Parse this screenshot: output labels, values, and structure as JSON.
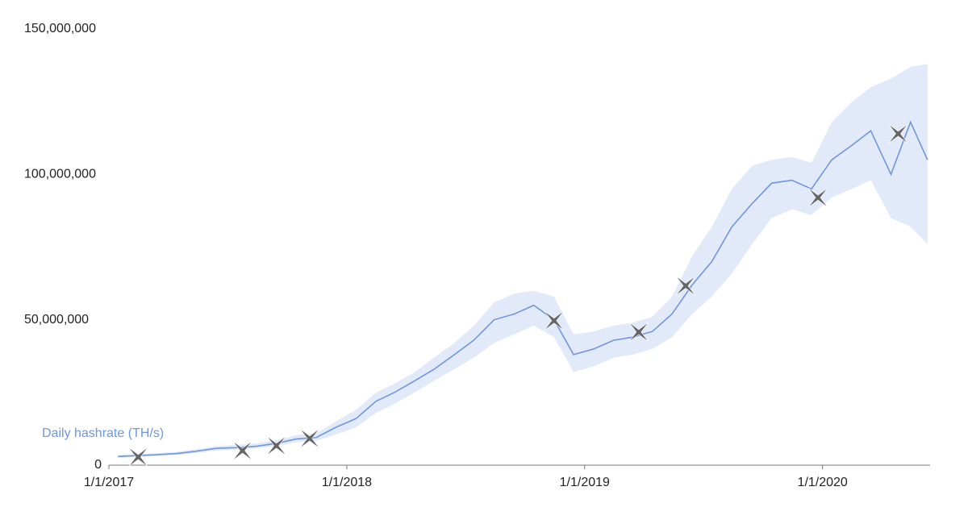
{
  "chart_data": {
    "type": "line",
    "x": [
      "2017-01-15",
      "2017-02-15",
      "2017-03-15",
      "2017-04-15",
      "2017-05-15",
      "2017-06-15",
      "2017-07-15",
      "2017-08-15",
      "2017-09-15",
      "2017-10-15",
      "2017-11-15",
      "2017-12-15",
      "2018-01-15",
      "2018-02-15",
      "2018-03-15",
      "2018-04-15",
      "2018-05-15",
      "2018-06-15",
      "2018-07-15",
      "2018-08-15",
      "2018-09-15",
      "2018-10-15",
      "2018-11-15",
      "2018-12-15",
      "2019-01-15",
      "2019-02-15",
      "2019-03-15",
      "2019-04-15",
      "2019-05-15",
      "2019-06-15",
      "2019-07-15",
      "2019-08-15",
      "2019-09-15",
      "2019-10-15",
      "2019-11-15",
      "2019-12-15",
      "2020-01-15",
      "2020-02-15",
      "2020-03-15",
      "2020-04-15",
      "2020-05-15",
      "2020-06-10"
    ],
    "series": [
      {
        "name": "Daily hashrate (TH/s)",
        "color": "#6f96e0",
        "values": [
          3000000,
          3300000,
          3600000,
          4000000,
          4800000,
          5800000,
          6000000,
          6500000,
          7500000,
          9000000,
          9500000,
          13000000,
          16000000,
          22000000,
          25000000,
          29000000,
          33000000,
          38000000,
          43000000,
          50000000,
          52000000,
          55000000,
          50000000,
          38000000,
          40000000,
          43000000,
          44000000,
          46000000,
          52000000,
          62000000,
          70000000,
          82000000,
          90000000,
          97000000,
          98000000,
          95000000,
          105000000,
          110000000,
          115000000,
          100000000,
          118000000,
          105000000
        ]
      }
    ],
    "band": {
      "color": "#e2eafa",
      "upper": [
        3500000,
        3800000,
        4200000,
        4600000,
        5500000,
        6600000,
        7000000,
        7500000,
        8600000,
        10300000,
        11000000,
        15000000,
        19000000,
        25000000,
        28000000,
        32000000,
        37000000,
        42000000,
        48000000,
        56000000,
        59000000,
        60000000,
        58000000,
        45000000,
        46000000,
        48000000,
        49000000,
        51000000,
        58000000,
        72000000,
        82000000,
        95000000,
        103000000,
        105000000,
        106000000,
        104000000,
        118000000,
        125000000,
        130000000,
        133000000,
        137000000,
        138000000
      ],
      "lower": [
        2600000,
        2900000,
        3200000,
        3500000,
        4200000,
        5000000,
        5300000,
        5800000,
        6600000,
        7900000,
        8400000,
        10500000,
        13000000,
        18000000,
        21000000,
        25000000,
        29000000,
        33000000,
        37000000,
        42000000,
        45000000,
        48000000,
        44000000,
        32000000,
        34000000,
        37000000,
        38000000,
        40000000,
        44000000,
        52000000,
        58000000,
        66000000,
        76000000,
        85000000,
        88000000,
        86000000,
        92000000,
        95000000,
        98000000,
        85000000,
        82000000,
        76000000
      ]
    },
    "markers": {
      "color": "#666666",
      "x": [
        "2017-02-15",
        "2017-07-25",
        "2017-09-15",
        "2017-11-05",
        "2018-11-15",
        "2019-03-25",
        "2019-06-05",
        "2019-12-25",
        "2020-04-26"
      ],
      "values": [
        2800000,
        5000000,
        6700000,
        9200000,
        49700000,
        45800000,
        61700000,
        92000000,
        114000000
      ]
    },
    "xlim": [
      "2017-01-01",
      "2020-06-14"
    ],
    "xticks": [
      {
        "value": "2017-01-01",
        "label": "1/1/2017"
      },
      {
        "value": "2018-01-01",
        "label": "1/1/2018"
      },
      {
        "value": "2019-01-01",
        "label": "1/1/2019"
      },
      {
        "value": "2020-01-01",
        "label": "1/1/2020"
      }
    ],
    "ylim": [
      0,
      150000000
    ],
    "yticks": [
      0,
      {
        "value": 50000000,
        "label": "50,000,000"
      },
      {
        "value": 100000000,
        "label": "100,000,000"
      },
      {
        "value": 150000000,
        "label": "150,000,000"
      }
    ]
  }
}
